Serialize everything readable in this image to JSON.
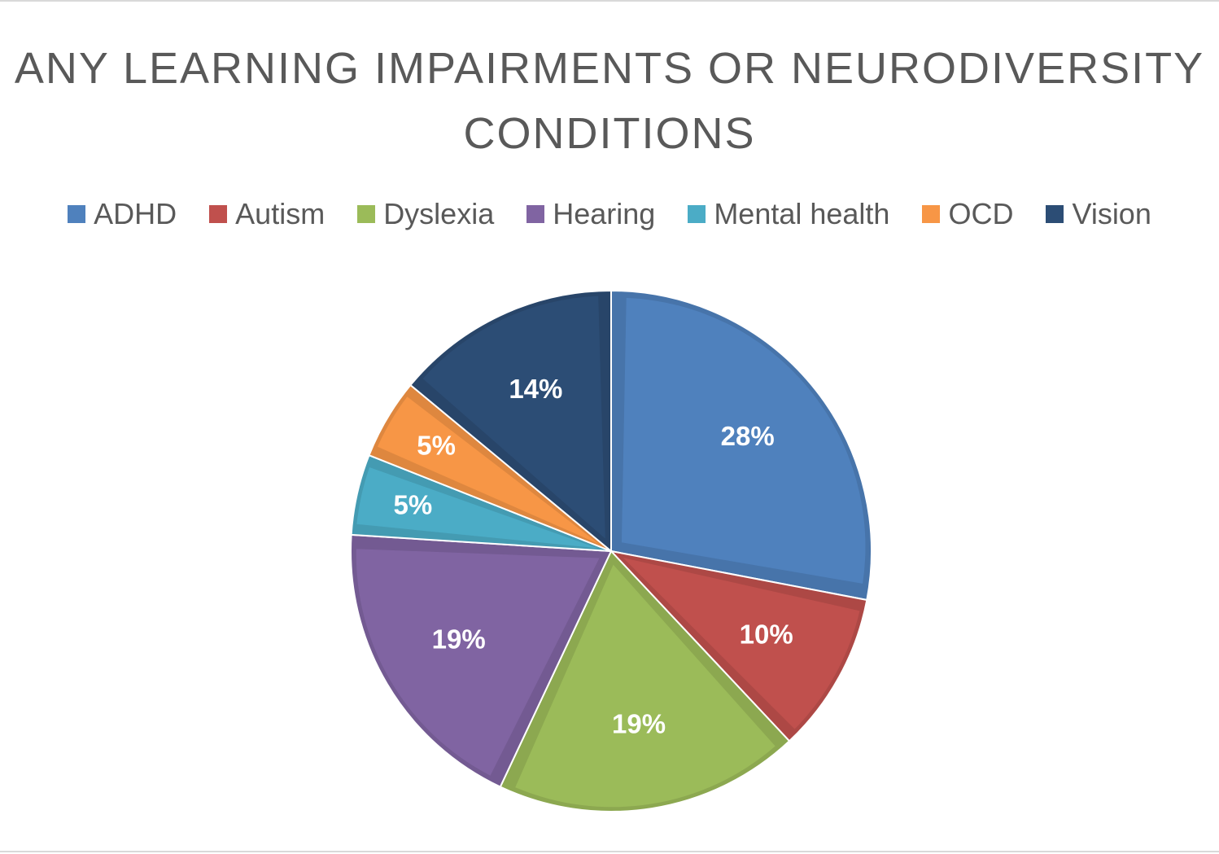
{
  "chart_data": {
    "type": "pie",
    "title_lines": [
      "ANY LEARNING IMPAIRMENTS OR NEURODIVERSITY",
      "CONDITIONS"
    ],
    "legend_position": "top",
    "slices": [
      {
        "name": "ADHD",
        "value": 28,
        "label": "28%",
        "color": "#4f81bd"
      },
      {
        "name": "Autism",
        "value": 10,
        "label": "10%",
        "color": "#c0504d"
      },
      {
        "name": "Dyslexia",
        "value": 19,
        "label": "19%",
        "color": "#9bbb59"
      },
      {
        "name": "Hearing",
        "value": 19,
        "label": "19%",
        "color": "#8064a2"
      },
      {
        "name": "Mental health",
        "value": 5,
        "label": "5%",
        "color": "#4bacc6"
      },
      {
        "name": "OCD",
        "value": 5,
        "label": "5%",
        "color": "#f79646"
      },
      {
        "name": "Vision",
        "value": 14,
        "label": "14%",
        "color": "#2c4d75"
      }
    ]
  }
}
